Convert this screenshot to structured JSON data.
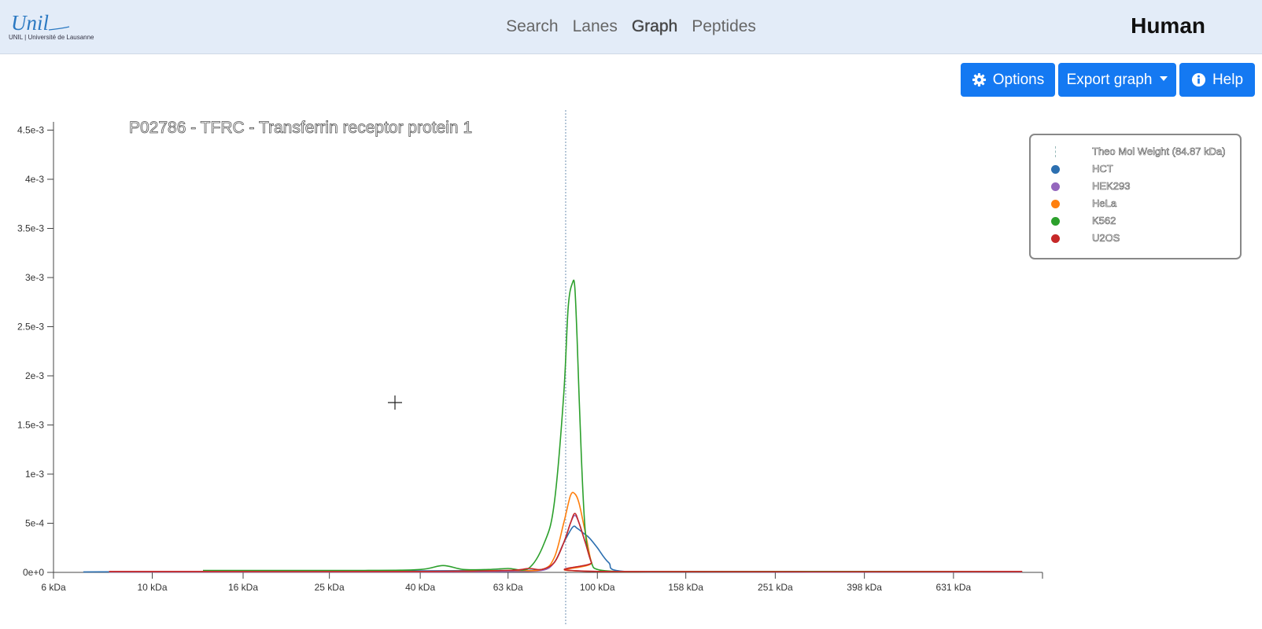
{
  "header": {
    "logo_text": "Unil",
    "logo_subtext": "UNIL | Université de Lausanne",
    "nav": [
      "Search",
      "Lanes",
      "Graph",
      "Peptides"
    ],
    "active_nav": "Graph",
    "organism": "Human"
  },
  "toolbar": {
    "options_label": "Options",
    "export_label": "Export graph",
    "help_label": "Help"
  },
  "legend": {
    "theo_label": "Theo Mol Weight (84.87 kDa)",
    "items": [
      {
        "label": "HCT",
        "color": "#2c6fb0"
      },
      {
        "label": "HEK293",
        "color": "#9467bd"
      },
      {
        "label": "HeLa",
        "color": "#ff7f0e"
      },
      {
        "label": "K562",
        "color": "#2ca02c"
      },
      {
        "label": "U2OS",
        "color": "#c62828"
      }
    ]
  },
  "chart_data": {
    "type": "line",
    "title": "P02786 - TFRC - Transferrin receptor protein 1",
    "xlabel": "",
    "ylabel": "",
    "x_scale": "log",
    "x_unit": "kDa",
    "x_ticks": [
      6,
      10,
      16,
      25,
      40,
      63,
      100,
      158,
      251,
      398,
      631
    ],
    "x_tick_labels": [
      "6 kDa",
      "10 kDa",
      "16 kDa",
      "25 kDa",
      "40 kDa",
      "63 kDa",
      "100 kDa",
      "158 kDa",
      "251 kDa",
      "398 kDa",
      "631 kDa"
    ],
    "xlim": [
      6,
      1000
    ],
    "ylim": [
      0,
      0.0046
    ],
    "y_ticks": [
      0,
      0.0005,
      0.001,
      0.0015,
      0.002,
      0.0025,
      0.003,
      0.0035,
      0.004,
      0.0045
    ],
    "y_tick_labels": [
      "0e+0",
      "5e-4",
      "1e-3",
      "1.5e-3",
      "2e-3",
      "2.5e-3",
      "3e-3",
      "3.5e-3",
      "4e-3",
      "4.5e-3"
    ],
    "theo_mol_weight": 84.87,
    "grid": false,
    "legend_position": "top-right",
    "series": [
      {
        "name": "HCT",
        "color": "#2c6fb0",
        "x": [
          7,
          20,
          40,
          63,
          75,
          80,
          84,
          88,
          90,
          93,
          96,
          100,
          106,
          115,
          200,
          631,
          900
        ],
        "y": [
          5e-06,
          1e-05,
          1.5e-05,
          2e-05,
          3e-05,
          0.0001,
          0.0003,
          0.00046,
          0.00045,
          0.0004,
          0.00035,
          0.00025,
          0.0001,
          1e-05,
          5e-06,
          5e-06,
          1e-05
        ]
      },
      {
        "name": "HEK293",
        "color": "#9467bd",
        "x": [
          8,
          40,
          63,
          75,
          80,
          84,
          87,
          89,
          91,
          94,
          97,
          100,
          900
        ],
        "y": [
          5e-06,
          5e-06,
          1e-05,
          2e-05,
          0.0001,
          0.0003,
          0.0005,
          0.00058,
          0.0005,
          0.0003,
          0.0001,
          1e-05,
          5e-06
        ]
      },
      {
        "name": "HeLa",
        "color": "#ff7f0e",
        "x": [
          8,
          40,
          63,
          75,
          80,
          84,
          87,
          89,
          91,
          94,
          97,
          100,
          900
        ],
        "y": [
          1e-05,
          1e-05,
          2e-05,
          3e-05,
          0.00015,
          0.0005,
          0.00078,
          0.0008,
          0.0007,
          0.0004,
          0.0001,
          1e-05,
          1e-05
        ]
      },
      {
        "name": "K562",
        "color": "#2ca02c",
        "x": [
          13,
          30,
          40,
          45,
          50,
          57,
          63,
          70,
          76,
          80,
          84,
          86,
          88,
          89,
          90,
          92,
          94,
          97,
          100,
          110,
          130,
          900
        ],
        "y": [
          2e-05,
          2e-05,
          3e-05,
          7e-05,
          3e-05,
          3e-05,
          4e-05,
          4e-05,
          0.0003,
          0.0007,
          0.0018,
          0.0027,
          0.00295,
          0.0029,
          0.0024,
          0.0012,
          0.0004,
          0.0001,
          3e-05,
          1e-05,
          1e-05,
          1e-05
        ]
      },
      {
        "name": "U2OS",
        "color": "#c62828",
        "x": [
          8,
          40,
          63,
          70,
          75,
          80,
          84,
          87,
          89,
          91,
          94,
          97,
          100,
          900
        ],
        "y": [
          1e-05,
          1e-05,
          2e-05,
          4e-05,
          3e-05,
          0.0001,
          0.0003,
          0.0005,
          0.0006,
          0.0005,
          0.0003,
          0.0001,
          1e-05,
          1e-05
        ]
      }
    ]
  }
}
